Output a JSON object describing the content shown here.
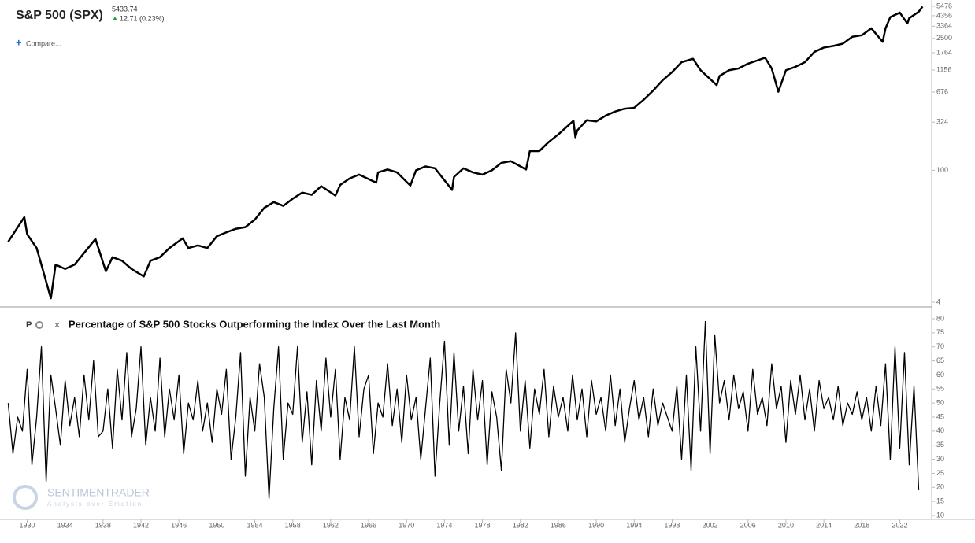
{
  "header": {
    "price": "5433.74",
    "change": "12.71 (0.23%)",
    "compare": "Compare...",
    "panel_button": "P"
  },
  "watermark": {
    "brand": "SENTIMENTRADER",
    "tagline": "Analysis over Emotion"
  },
  "chart_data": [
    {
      "type": "line",
      "title": "S&P 500 (SPX)",
      "log_scale": true,
      "xlim": [
        1927.8,
        2025.2
      ],
      "ylim": [
        4,
        5476
      ],
      "yticks": [
        4,
        100,
        324,
        676,
        1156,
        1764,
        2500,
        3364,
        4356,
        5476
      ],
      "series": [
        {
          "name": "S&P 500 (SPX)",
          "color": "#000000",
          "x": [
            1928.0,
            1929.7,
            1930.0,
            1931.0,
            1932.5,
            1933.0,
            1934.0,
            1935.0,
            1937.2,
            1938.3,
            1939.0,
            1940.0,
            1941.0,
            1942.3,
            1943.0,
            1944.0,
            1945.0,
            1946.4,
            1947.0,
            1948.0,
            1949.0,
            1950.0,
            1951.0,
            1952.0,
            1953.0,
            1954.0,
            1955.0,
            1956.0,
            1957.0,
            1958.0,
            1959.0,
            1960.0,
            1961.0,
            1962.5,
            1963.0,
            1964.0,
            1965.0,
            1966.8,
            1967.0,
            1968.0,
            1969.0,
            1970.4,
            1971.0,
            1972.0,
            1973.0,
            1974.8,
            1975.0,
            1976.0,
            1977.0,
            1978.0,
            1979.0,
            1980.0,
            1981.0,
            1982.6,
            1983.0,
            1984.0,
            1985.0,
            1986.0,
            1987.6,
            1987.8,
            1988.0,
            1989.0,
            1990.0,
            1991.0,
            1992.0,
            1993.0,
            1994.0,
            1995.0,
            1996.0,
            1997.0,
            1998.0,
            1999.0,
            2000.2,
            2001.0,
            2002.7,
            2003.0,
            2004.0,
            2005.0,
            2006.0,
            2007.8,
            2008.5,
            2009.2,
            2010.0,
            2011.0,
            2012.0,
            2013.0,
            2014.0,
            2015.0,
            2016.0,
            2017.0,
            2018.0,
            2019.0,
            2020.2,
            2020.5,
            2021.0,
            2022.0,
            2022.8,
            2023.0,
            2024.0,
            2024.4
          ],
          "values": [
            17.5,
            31.9,
            21,
            15,
            4.4,
            10,
            9,
            10,
            18.7,
            8.5,
            12,
            11,
            9,
            7.5,
            11,
            12,
            15,
            19,
            15,
            16,
            15,
            20,
            22,
            24,
            25,
            30,
            40,
            46,
            42,
            50,
            58,
            55,
            68,
            54,
            70,
            82,
            90,
            74,
            95,
            102,
            95,
            69,
            100,
            110,
            105,
            62,
            85,
            105,
            95,
            90,
            100,
            120,
            125,
            102,
            160,
            160,
            200,
            240,
            335,
            224,
            265,
            340,
            330,
            380,
            420,
            450,
            460,
            560,
            700,
            900,
            1100,
            1400,
            1520,
            1150,
            800,
            1000,
            1150,
            1200,
            1350,
            1560,
            1200,
            680,
            1150,
            1250,
            1400,
            1800,
            2000,
            2080,
            2200,
            2600,
            2700,
            3200,
            2300,
            3200,
            4200,
            4700,
            3600,
            4100,
            4800,
            5433.74
          ]
        }
      ]
    },
    {
      "type": "line",
      "title": "Percentage of S&P 500 Stocks Outperforming the Index Over the Last Month",
      "xlim": [
        1927.8,
        2025.2
      ],
      "ylim": [
        10,
        80
      ],
      "xticks": [
        1930,
        1934,
        1938,
        1942,
        1946,
        1950,
        1954,
        1958,
        1962,
        1966,
        1970,
        1974,
        1978,
        1982,
        1986,
        1990,
        1994,
        1998,
        2002,
        2006,
        2010,
        2014,
        2018,
        2022
      ],
      "yticks": [
        10,
        15,
        20,
        25,
        30,
        35,
        40,
        45,
        50,
        55,
        60,
        65,
        70,
        75,
        80
      ],
      "series": [
        {
          "name": "Percentage of S&P 500 Stocks Outperforming the Index Over the Last Month",
          "color": "#000000",
          "x": [
            1928,
            1928.5,
            1929,
            1929.5,
            1930,
            1930.5,
            1931,
            1931.5,
            1932,
            1932.5,
            1933,
            1933.5,
            1934,
            1934.5,
            1935,
            1935.5,
            1936,
            1936.5,
            1937,
            1937.5,
            1938,
            1938.5,
            1939,
            1939.5,
            1940,
            1940.5,
            1941,
            1941.5,
            1942,
            1942.5,
            1943,
            1943.5,
            1944,
            1944.5,
            1945,
            1945.5,
            1946,
            1946.5,
            1947,
            1947.5,
            1948,
            1948.5,
            1949,
            1949.5,
            1950,
            1950.5,
            1951,
            1951.5,
            1952,
            1952.5,
            1953,
            1953.5,
            1954,
            1954.5,
            1955,
            1955.5,
            1956,
            1956.5,
            1957,
            1957.5,
            1958,
            1958.5,
            1959,
            1959.5,
            1960,
            1960.5,
            1961,
            1961.5,
            1962,
            1962.5,
            1963,
            1963.5,
            1964,
            1964.5,
            1965,
            1965.5,
            1966,
            1966.5,
            1967,
            1967.5,
            1968,
            1968.5,
            1969,
            1969.5,
            1970,
            1970.5,
            1971,
            1971.5,
            1972,
            1972.5,
            1973,
            1973.5,
            1974,
            1974.5,
            1975,
            1975.5,
            1976,
            1976.5,
            1977,
            1977.5,
            1978,
            1978.5,
            1979,
            1979.5,
            1980,
            1980.5,
            1981,
            1981.5,
            1982,
            1982.5,
            1983,
            1983.5,
            1984,
            1984.5,
            1985,
            1985.5,
            1986,
            1986.5,
            1987,
            1987.5,
            1988,
            1988.5,
            1989,
            1989.5,
            1990,
            1990.5,
            1991,
            1991.5,
            1992,
            1992.5,
            1993,
            1993.5,
            1994,
            1994.5,
            1995,
            1995.5,
            1996,
            1996.5,
            1997,
            1997.5,
            1998,
            1998.5,
            1999,
            1999.5,
            2000,
            2000.5,
            2001,
            2001.5,
            2002,
            2002.5,
            2003,
            2003.5,
            2004,
            2004.5,
            2005,
            2005.5,
            2006,
            2006.5,
            2007,
            2007.5,
            2008,
            2008.5,
            2009,
            2009.5,
            2010,
            2010.5,
            2011,
            2011.5,
            2012,
            2012.5,
            2013,
            2013.5,
            2014,
            2014.5,
            2015,
            2015.5,
            2016,
            2016.5,
            2017,
            2017.5,
            2018,
            2018.5,
            2019,
            2019.5,
            2020,
            2020.5,
            2021,
            2021.5,
            2022,
            2022.5,
            2023,
            2023.5,
            2024
          ],
          "values": [
            50,
            32,
            45,
            40,
            62,
            28,
            45,
            70,
            22,
            60,
            48,
            35,
            58,
            42,
            52,
            38,
            60,
            44,
            65,
            38,
            40,
            55,
            34,
            62,
            44,
            68,
            38,
            48,
            70,
            35,
            52,
            40,
            66,
            38,
            55,
            44,
            60,
            32,
            50,
            44,
            58,
            40,
            50,
            36,
            55,
            46,
            62,
            30,
            45,
            68,
            24,
            52,
            40,
            64,
            52,
            16,
            48,
            70,
            30,
            50,
            46,
            70,
            36,
            54,
            28,
            58,
            40,
            66,
            45,
            62,
            30,
            52,
            44,
            70,
            38,
            55,
            60,
            32,
            50,
            45,
            64,
            42,
            55,
            36,
            60,
            44,
            52,
            30,
            48,
            66,
            24,
            50,
            72,
            35,
            68,
            40,
            56,
            32,
            62,
            44,
            58,
            28,
            54,
            45,
            26,
            62,
            50,
            75,
            40,
            58,
            34,
            55,
            46,
            62,
            38,
            56,
            45,
            52,
            40,
            60,
            44,
            55,
            38,
            58,
            46,
            52,
            40,
            60,
            42,
            55,
            36,
            48,
            58,
            44,
            52,
            38,
            55,
            42,
            50,
            45,
            40,
            56,
            30,
            60,
            26,
            70,
            40,
            79,
            32,
            74,
            50,
            58,
            44,
            60,
            48,
            54,
            40,
            62,
            46,
            52,
            42,
            64,
            48,
            56,
            36,
            58,
            46,
            60,
            44,
            55,
            40,
            58,
            48,
            52,
            44,
            56,
            42,
            50,
            46,
            54,
            44,
            52,
            40,
            56,
            42,
            64,
            30,
            70,
            34,
            68,
            28,
            56,
            19
          ]
        }
      ]
    }
  ]
}
